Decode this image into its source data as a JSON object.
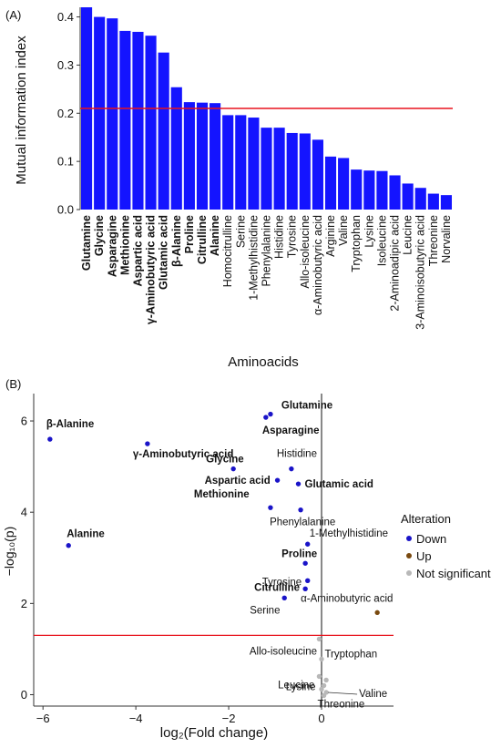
{
  "chart_data": [
    {
      "panel_label": "(A)",
      "type": "bar",
      "xlabel": "Aminoacids",
      "ylabel": "Mutual information index",
      "ylim": [
        0,
        0.42
      ],
      "yticks": [
        0.0,
        0.1,
        0.2,
        0.3,
        0.4
      ],
      "ytick_labels": [
        "0.0",
        "0.1",
        "0.2",
        "0.3",
        "0.4"
      ],
      "threshold": 0.21,
      "bar_color": "#1414ff",
      "threshold_color": "#e8141e",
      "categories": [
        "Glutamine",
        "Glycine",
        "Asparagine",
        "Methionine",
        "Aspartic acid",
        "γ-Aminobutyric acid",
        "Glutamic acid",
        "β-Alanine",
        "Proline",
        "Citrulline",
        "Alanine",
        "Homocitrulline",
        "Serine",
        "1-Methylhistidine",
        "Phenylalanine",
        "Histidine",
        "Tyrosine",
        "Allo-isoleucine",
        "α-Aminobutyric acid",
        "Arginine",
        "Valine",
        "Tryptophan",
        "Lysine",
        "Isoleucine",
        "2-Aminoadipic acid",
        "Leucine",
        "3-Aminoisobutyric acid",
        "Threonine",
        "Norvaline"
      ],
      "bold": [
        true,
        true,
        true,
        true,
        true,
        true,
        true,
        true,
        true,
        true,
        true,
        false,
        false,
        false,
        false,
        false,
        false,
        false,
        false,
        false,
        false,
        false,
        false,
        false,
        false,
        false,
        false,
        false,
        false
      ],
      "values": [
        0.42,
        0.4,
        0.397,
        0.371,
        0.369,
        0.361,
        0.326,
        0.254,
        0.223,
        0.222,
        0.221,
        0.196,
        0.196,
        0.191,
        0.17,
        0.17,
        0.159,
        0.158,
        0.145,
        0.11,
        0.107,
        0.083,
        0.081,
        0.08,
        0.071,
        0.054,
        0.045,
        0.033,
        0.03
      ]
    },
    {
      "panel_label": "(B)",
      "type": "scatter",
      "xlabel": "log₂(Fold change)",
      "ylabel": "−log₁₀(p)",
      "xlim": [
        -6.2,
        1.55
      ],
      "ylim": [
        -0.25,
        6.6
      ],
      "xticks": [
        -6,
        -4,
        -2,
        0
      ],
      "xtick_labels": [
        "−6",
        "−4",
        "−2",
        "0"
      ],
      "yticks": [
        0,
        2,
        4,
        6
      ],
      "ytick_labels": [
        "0",
        "2",
        "4",
        "6"
      ],
      "hline": 1.3,
      "vline": 0,
      "legend": {
        "title": "Alteration",
        "position": "right",
        "entries": [
          {
            "label": "Down",
            "color": "#1a14c8"
          },
          {
            "label": "Up",
            "color": "#7a4a10"
          },
          {
            "label": "Not significant",
            "color": "#b8b8b8"
          }
        ]
      },
      "points": [
        {
          "label": "Glutamine",
          "x": -1.1,
          "y": 6.15,
          "group": "Down",
          "bold": true
        },
        {
          "label": "Asparagine",
          "x": -1.2,
          "y": 6.08,
          "group": "Down",
          "bold": true
        },
        {
          "label": "β-Alanine",
          "x": -5.85,
          "y": 5.6,
          "group": "Down",
          "bold": true
        },
        {
          "label": "γ-Aminobutyric acid",
          "x": -3.75,
          "y": 5.5,
          "group": "Down",
          "bold": true
        },
        {
          "label": "Histidine",
          "x": -0.65,
          "y": 4.95,
          "group": "Down",
          "bold": false
        },
        {
          "label": "Glycine",
          "x": -1.9,
          "y": 4.95,
          "group": "Down",
          "bold": true
        },
        {
          "label": "Aspartic acid",
          "x": -0.95,
          "y": 4.7,
          "group": "Down",
          "bold": true
        },
        {
          "label": "Glutamic acid",
          "x": -0.5,
          "y": 4.62,
          "group": "Down",
          "bold": true
        },
        {
          "label": "Methionine",
          "x": -1.1,
          "y": 4.1,
          "group": "Down",
          "bold": true
        },
        {
          "label": "Phenylalanine",
          "x": -0.45,
          "y": 4.05,
          "group": "Down",
          "bold": false
        },
        {
          "label": "1-Methylhistidine",
          "x": -0.3,
          "y": 3.3,
          "group": "Down",
          "bold": false
        },
        {
          "label": "Alanine",
          "x": -5.45,
          "y": 3.27,
          "group": "Down",
          "bold": true
        },
        {
          "label": "Proline",
          "x": -0.35,
          "y": 2.88,
          "group": "Down",
          "bold": true
        },
        {
          "label": "Tyrosine",
          "x": -0.3,
          "y": 2.5,
          "group": "Down",
          "bold": false
        },
        {
          "label": "Citrulline",
          "x": -0.35,
          "y": 2.32,
          "group": "Down",
          "bold": true
        },
        {
          "label": "Serine",
          "x": -0.8,
          "y": 2.12,
          "group": "Down",
          "bold": false
        },
        {
          "label": "α-Aminobutyric acid",
          "x": 1.2,
          "y": 1.8,
          "group": "Up",
          "bold": false
        },
        {
          "label": "Tryptophan",
          "x": -0.05,
          "y": 1.22,
          "group": "Not significant",
          "bold": false
        },
        {
          "label": "Allo-isoleucine",
          "x": 0.0,
          "y": 0.78,
          "group": "Not significant",
          "bold": false
        },
        {
          "label": "Leucine",
          "x": -0.05,
          "y": 0.4,
          "group": "Not significant",
          "bold": false
        },
        {
          "label": "Lysine",
          "x": 0.05,
          "y": 0.2,
          "group": "Not significant",
          "bold": false
        },
        {
          "label": "Valine",
          "x": 0.1,
          "y": 0.05,
          "group": "Not significant",
          "bold": false
        },
        {
          "label": "Threonine",
          "x": 0.05,
          "y": -0.02,
          "group": "Not significant",
          "bold": false
        },
        {
          "label": "",
          "x": 0.1,
          "y": 0.32,
          "group": "Not significant",
          "bold": false
        },
        {
          "label": "",
          "x": 0.0,
          "y": 0.12,
          "group": "Not significant",
          "bold": false
        }
      ]
    }
  ]
}
